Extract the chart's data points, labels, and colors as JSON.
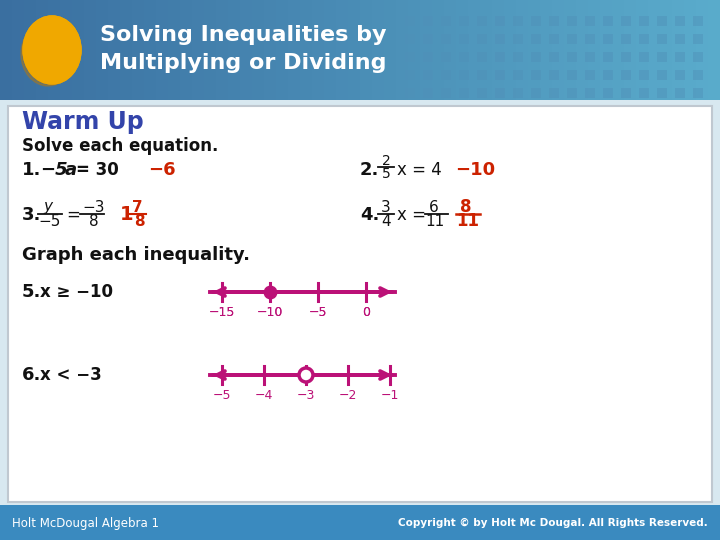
{
  "title_line1": "Solving Inequalities by",
  "title_line2": "Multiplying or Dividing",
  "header_bg_left": "#3a6fa0",
  "header_bg_right": "#5aaccc",
  "header_text_color": "#ffffff",
  "body_bg": "#d8e8f0",
  "content_bg": "#ffffff",
  "content_border": "#c0c8d0",
  "warm_up_color": "#3344aa",
  "answer_color": "#cc2200",
  "black_text": "#111111",
  "number_line_color": "#bb1177",
  "footer_bg": "#3a8abf",
  "footer_text_color": "#ffffff",
  "footer_text_left": "Holt McDougal Algebra 1",
  "footer_text_right": "Copyright © by Holt Mc Dougal. All Rights Reserved.",
  "circle_color": "#f0a800",
  "square_dot_color": "#5090b8"
}
